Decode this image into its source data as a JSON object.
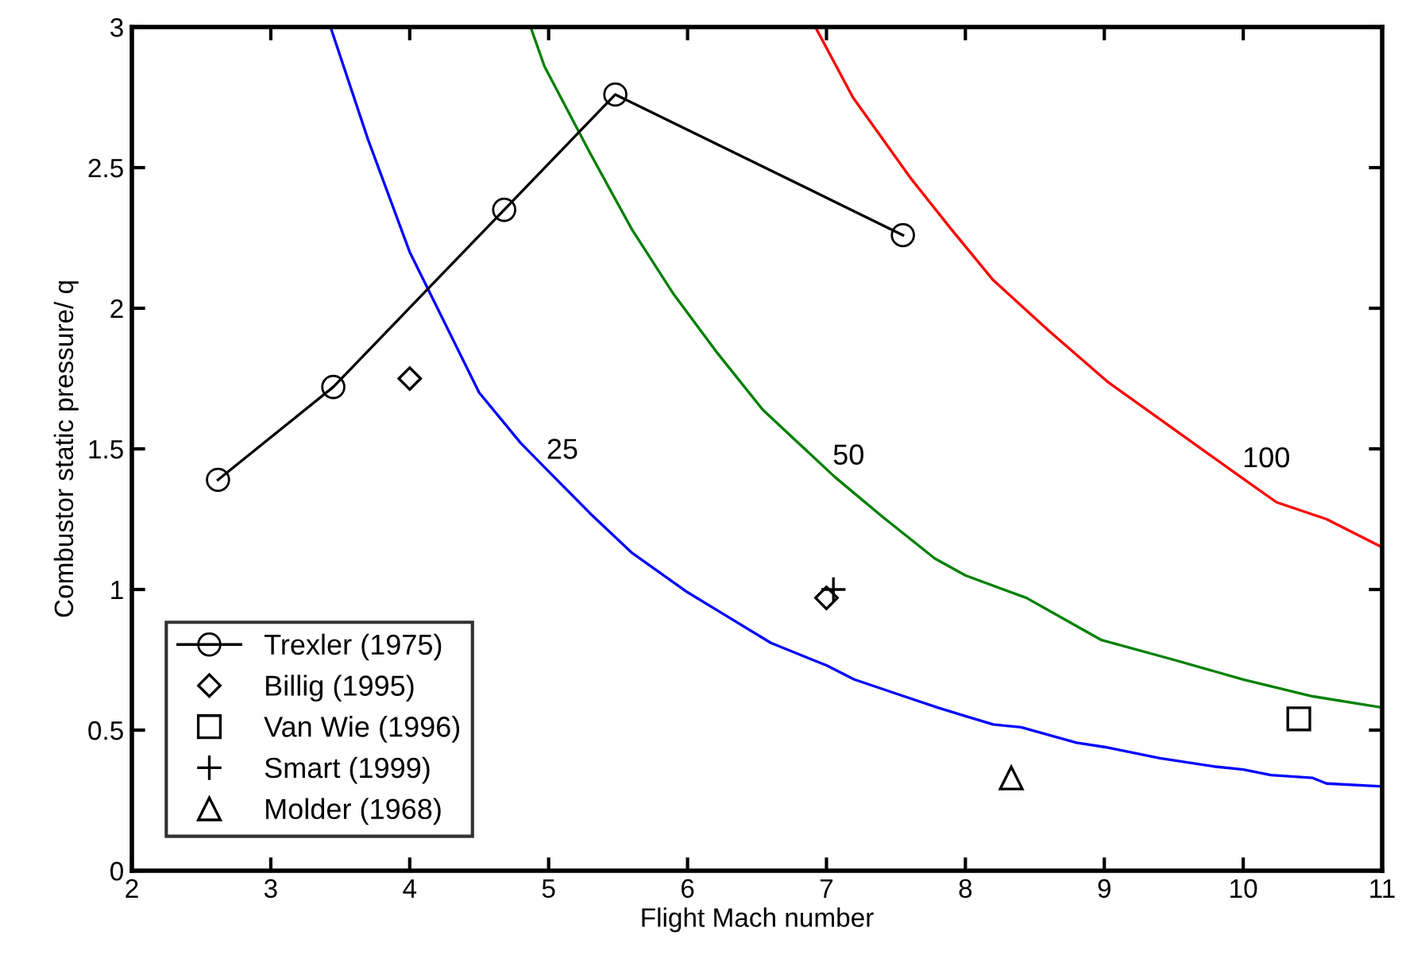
{
  "chart_data": {
    "type": "line",
    "xlabel": "Flight Mach number",
    "ylabel": "Combustor static pressure/ q",
    "xlim": [
      2,
      11
    ],
    "ylim": [
      0,
      3
    ],
    "xticks": [
      2,
      3,
      4,
      5,
      6,
      7,
      8,
      9,
      10,
      11
    ],
    "yticks": [
      0,
      0.5,
      1,
      1.5,
      2,
      2.5,
      3
    ],
    "grid": false,
    "legend": "bottom left",
    "series": [
      {
        "color": "#0000ff",
        "marker": "none",
        "x": [
          3.43,
          3.7,
          4.0,
          4.2,
          4.5,
          4.8,
          5.0,
          5.3,
          5.6,
          6.0,
          6.3,
          6.6,
          7.0,
          7.2,
          7.5,
          7.8,
          8.0,
          8.2,
          8.4,
          8.8,
          9.0,
          9.4,
          9.8,
          10.0,
          10.2,
          10.5,
          10.6,
          11.0
        ],
        "values": [
          3.0,
          2.6,
          2.2,
          2.0,
          1.7,
          1.52,
          1.42,
          1.27,
          1.13,
          0.99,
          0.9,
          0.81,
          0.73,
          0.68,
          0.63,
          0.58,
          0.55,
          0.52,
          0.51,
          0.455,
          0.44,
          0.4,
          0.37,
          0.36,
          0.34,
          0.33,
          0.31,
          0.3
        ]
      },
      {
        "color": "#008000",
        "marker": "none",
        "x": [
          4.87,
          4.97,
          5.3,
          5.6,
          5.9,
          6.2,
          6.54,
          6.8,
          7.06,
          7.4,
          7.78,
          8.0,
          8.44,
          8.98,
          9.5,
          10.0,
          10.5,
          11.0
        ],
        "values": [
          3.0,
          2.86,
          2.55,
          2.28,
          2.05,
          1.85,
          1.64,
          1.52,
          1.4,
          1.26,
          1.11,
          1.05,
          0.97,
          0.82,
          0.75,
          0.68,
          0.62,
          0.58
        ]
      },
      {
        "color": "#ff0000",
        "marker": "none",
        "x": [
          6.92,
          7.19,
          7.61,
          7.9,
          8.2,
          8.6,
          9.02,
          9.5,
          10.01,
          10.24,
          10.6,
          11.0
        ],
        "values": [
          3.0,
          2.75,
          2.46,
          2.28,
          2.1,
          1.92,
          1.74,
          1.57,
          1.39,
          1.31,
          1.25,
          1.15
        ]
      },
      {
        "name": "Trexler (1975)",
        "type": "line",
        "color": "#000000",
        "marker": "circle",
        "line_style": "solid",
        "x": [
          2.62,
          3.45,
          4.68,
          5.48,
          7.55
        ],
        "values": [
          1.39,
          1.72,
          2.35,
          2.76,
          2.26
        ]
      },
      {
        "name": "Billig (1995)",
        "type": "scatter",
        "color": "#000000",
        "marker": "diamond",
        "x": [
          4.0,
          7.0
        ],
        "values": [
          1.75,
          0.97
        ]
      },
      {
        "name": "Van Wie (1996)",
        "type": "scatter",
        "color": "#000000",
        "marker": "square",
        "x": [
          10.4
        ],
        "values": [
          0.54
        ]
      },
      {
        "name": "Smart (1999)",
        "type": "scatter",
        "color": "#000000",
        "marker": "cross",
        "x": [
          7.05
        ],
        "values": [
          1.0
        ]
      },
      {
        "name": "Molder (1968)",
        "type": "scatter",
        "color": "#000000",
        "marker": "triangle",
        "x": [
          8.33
        ],
        "values": [
          0.33
        ]
      }
    ],
    "annotations": [
      {
        "text": "25",
        "x": 5.0,
        "y": 1.42
      },
      {
        "text": "50",
        "x": 7.06,
        "y": 1.4
      },
      {
        "text": "100",
        "x": 10.01,
        "y": 1.39
      }
    ]
  }
}
